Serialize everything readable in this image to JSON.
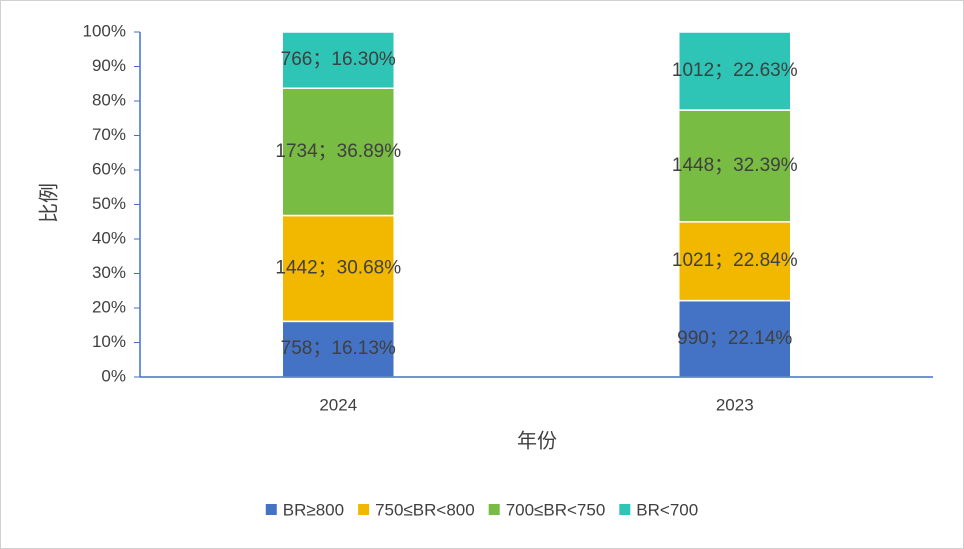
{
  "chart_data": {
    "type": "stacked_bar_percent",
    "x_label": "年份",
    "y_label": "比例",
    "categories": [
      "2024",
      "2023"
    ],
    "series": [
      {
        "name": "BR≥800",
        "color": "#4472c4",
        "values": [
          16.13,
          22.14
        ],
        "value_labels": [
          "758；16.13%",
          "990；22.14%"
        ]
      },
      {
        "name": "750≤BR<800",
        "color": "#f2b800",
        "values": [
          30.68,
          22.84
        ],
        "value_labels": [
          "1442；30.68%",
          "1021；22.84%"
        ]
      },
      {
        "name": "700≤BR<750",
        "color": "#78bc43",
        "values": [
          36.89,
          32.39
        ],
        "value_labels": [
          "1734；36.89%",
          "1448；32.39%"
        ]
      },
      {
        "name": "BR<700",
        "color": "#2ec4b6",
        "values": [
          16.3,
          22.63
        ],
        "value_labels": [
          "766；16.30%",
          "1012；22.63%"
        ]
      }
    ],
    "ylim": [
      0,
      100
    ],
    "yticks": [
      {
        "value": 0,
        "label": "0%"
      },
      {
        "value": 10,
        "label": "10%"
      },
      {
        "value": 20,
        "label": "20%"
      },
      {
        "value": 30,
        "label": "30%"
      },
      {
        "value": 40,
        "label": "40%"
      },
      {
        "value": 50,
        "label": "50%"
      },
      {
        "value": 60,
        "label": "60%"
      },
      {
        "value": 70,
        "label": "70%"
      },
      {
        "value": 80,
        "label": "80%"
      },
      {
        "value": 90,
        "label": "90%"
      },
      {
        "value": 100,
        "label": "100%"
      }
    ],
    "legend": "bottom"
  }
}
